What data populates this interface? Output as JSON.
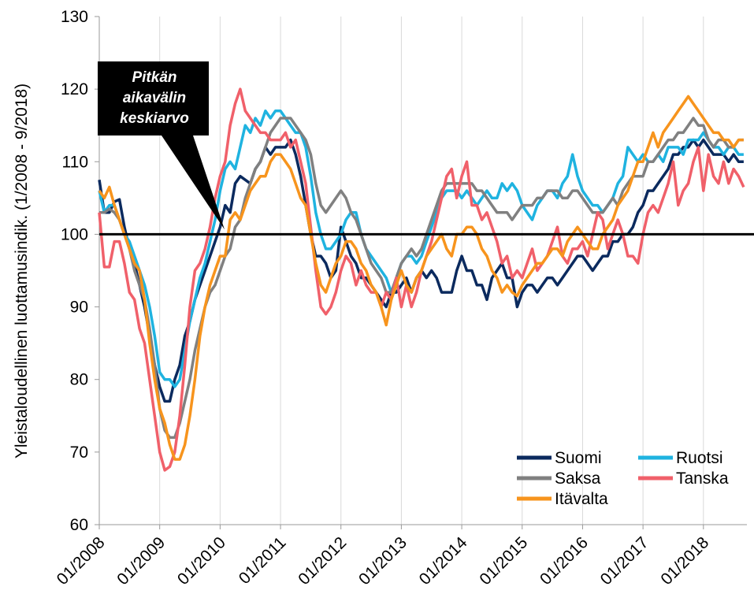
{
  "chart_data": {
    "type": "line",
    "y_label": "Yleistaloudellinen luottamusindik. (1/2008 - 9/2018)",
    "reference_line": 100,
    "annotation": [
      "Pitkän",
      "aikavälin",
      "keskiarvo"
    ],
    "categories": [
      "01/2008",
      null,
      null,
      null,
      null,
      null,
      null,
      null,
      null,
      null,
      null,
      null,
      "01/2009",
      null,
      null,
      null,
      null,
      null,
      null,
      null,
      null,
      null,
      null,
      null,
      "01/2010",
      null,
      null,
      null,
      null,
      null,
      null,
      null,
      null,
      null,
      null,
      null,
      "01/2011",
      null,
      null,
      null,
      null,
      null,
      null,
      null,
      null,
      null,
      null,
      null,
      "01/2012",
      null,
      null,
      null,
      null,
      null,
      null,
      null,
      null,
      null,
      null,
      null,
      "01/2013",
      null,
      null,
      null,
      null,
      null,
      null,
      null,
      null,
      null,
      null,
      null,
      "01/2014",
      null,
      null,
      null,
      null,
      null,
      null,
      null,
      null,
      null,
      null,
      null,
      "01/2015",
      null,
      null,
      null,
      null,
      null,
      null,
      null,
      null,
      null,
      null,
      null,
      "01/2016",
      null,
      null,
      null,
      null,
      null,
      null,
      null,
      null,
      null,
      null,
      null,
      "01/2017",
      null,
      null,
      null,
      null,
      null,
      null,
      null,
      null,
      null,
      null,
      null,
      "01/2018",
      null,
      null,
      null,
      null,
      null,
      null,
      null,
      null
    ],
    "series": [
      {
        "name": "Suomi",
        "color": "#0b2a5e",
        "values": [
          107.5,
          103,
          103,
          104.5,
          104.8,
          101,
          98,
          96,
          93,
          90,
          86,
          82,
          79,
          77,
          77,
          80,
          82,
          86,
          88,
          91,
          93,
          95,
          97,
          99,
          101,
          104,
          103,
          107,
          108,
          107.5,
          107,
          109,
          110,
          112,
          111,
          112,
          112,
          112,
          113,
          111,
          108,
          104,
          100,
          97,
          97,
          96,
          94,
          95,
          101,
          99,
          97,
          96,
          94,
          94,
          93,
          92,
          91,
          90,
          92,
          92,
          93,
          94,
          92,
          94,
          95,
          94,
          95,
          94,
          92,
          92,
          92,
          95,
          97,
          95,
          95,
          93,
          93,
          91,
          94,
          95,
          96,
          94,
          94,
          90,
          92,
          93,
          93,
          92,
          93,
          94,
          94,
          93,
          94,
          95,
          96,
          97,
          97,
          96,
          95,
          96,
          97,
          97,
          99,
          99,
          100,
          100,
          101,
          103,
          104,
          106,
          106,
          107,
          108,
          109,
          111,
          111,
          112,
          112,
          113,
          112,
          113,
          112,
          111,
          111,
          111,
          110,
          111,
          110,
          110
        ]
      },
      {
        "name": "Ruotsi",
        "color": "#1fb3e0",
        "values": [
          106,
          103,
          104,
          104,
          102,
          100,
          99,
          97,
          95,
          93,
          90,
          86,
          81,
          80,
          80,
          79,
          80,
          84,
          88,
          91,
          94,
          96,
          99,
          102,
          106,
          109,
          110,
          109,
          112,
          115,
          114,
          116,
          115,
          117,
          116,
          117,
          117,
          116,
          115,
          114,
          114,
          112,
          108,
          103,
          100,
          98,
          98,
          99,
          100,
          102,
          103,
          103,
          100,
          98,
          97,
          96,
          95,
          94,
          92,
          94,
          96,
          97,
          97,
          96,
          97,
          99,
          101,
          103,
          105,
          106,
          106,
          106,
          105,
          106,
          105,
          104,
          105,
          106,
          105,
          105,
          107,
          106,
          107,
          106,
          104,
          103,
          102,
          104,
          105,
          106,
          106,
          105,
          107,
          108,
          111,
          108,
          106,
          105,
          104,
          104,
          103,
          104,
          105,
          107,
          108,
          112,
          111,
          110,
          111,
          110,
          110,
          111,
          110,
          112,
          112,
          112,
          111,
          113,
          113,
          113,
          114,
          113,
          112,
          112,
          111,
          112,
          112,
          111,
          111
        ]
      },
      {
        "name": "Saksa",
        "color": "#808080",
        "values": [
          103,
          103,
          103.5,
          103,
          102,
          100,
          98,
          95,
          93,
          91,
          87,
          82,
          76,
          73,
          72,
          72,
          74,
          77,
          80,
          84,
          87,
          90,
          92,
          93,
          95,
          97,
          98,
          101,
          102,
          105,
          107,
          109,
          110,
          112,
          114,
          115,
          116,
          116,
          116,
          115,
          114,
          113,
          111,
          107,
          104,
          103,
          104,
          105,
          106,
          105,
          103,
          102,
          100,
          98,
          96,
          95,
          94,
          92,
          92,
          94,
          96,
          97,
          98,
          97,
          98,
          100,
          102,
          104,
          106,
          107,
          107,
          107,
          107,
          107,
          107,
          106,
          106,
          105,
          104,
          103,
          103,
          103,
          102,
          103,
          104,
          104,
          104,
          105,
          105,
          106,
          106,
          106,
          105,
          105,
          106,
          106,
          105,
          104,
          103,
          103,
          103,
          104,
          105,
          104,
          106,
          107,
          108,
          108,
          108,
          110,
          110,
          111,
          112,
          113,
          113,
          114,
          114,
          115,
          116,
          115,
          115,
          113,
          112,
          113,
          113,
          112,
          112,
          113,
          113
        ]
      },
      {
        "name": "Tanska",
        "color": "#f0606a",
        "values": [
          103,
          95.5,
          95.5,
          99,
          99,
          96,
          92,
          91,
          87,
          85,
          80,
          75,
          70,
          67.5,
          68,
          70,
          75,
          82,
          90,
          95,
          96,
          98,
          101,
          105,
          108,
          110,
          115,
          118,
          120,
          117,
          116,
          115,
          114,
          114,
          113,
          113,
          113,
          114,
          112,
          113,
          110,
          107,
          101,
          95,
          90,
          89,
          90,
          92,
          95,
          97,
          96,
          93,
          95,
          93,
          92,
          92,
          90,
          92,
          91,
          94,
          90,
          93,
          90,
          92,
          95,
          97,
          99,
          102,
          105,
          108,
          109,
          105,
          108,
          110,
          104,
          104,
          102,
          103,
          101,
          99,
          96,
          97,
          94,
          95,
          94,
          96,
          98,
          95,
          96,
          97,
          99,
          101,
          97,
          96,
          98,
          98,
          99,
          97,
          100,
          103,
          102,
          98,
          100,
          102,
          100,
          97,
          97,
          96,
          100,
          103,
          104,
          103,
          105,
          107,
          110,
          104,
          106,
          107,
          110,
          112,
          106,
          111,
          108,
          107,
          110,
          107,
          109,
          108,
          106.5
        ]
      },
      {
        "name": "Itävalta",
        "color": "#f7941d",
        "values": [
          106,
          105,
          106.5,
          104,
          102,
          100,
          98,
          96,
          95,
          91,
          85,
          80,
          76,
          74,
          71,
          69,
          69,
          71,
          75,
          80,
          86,
          90,
          93,
          95,
          97,
          97,
          102,
          103,
          102,
          104,
          106,
          107,
          108,
          108,
          110,
          111,
          111,
          110,
          109,
          107,
          105,
          104,
          100,
          96,
          93,
          92,
          94,
          96,
          97,
          99,
          99,
          98,
          96,
          95,
          93,
          92,
          90,
          87.5,
          91,
          93,
          95,
          93,
          92,
          94,
          95,
          97,
          98,
          99,
          100,
          98,
          97,
          100,
          100,
          101,
          101,
          100,
          98,
          97,
          95,
          94,
          92,
          93,
          92,
          91.5,
          93,
          94,
          95,
          96,
          96,
          97,
          98,
          98,
          97,
          99,
          100,
          101,
          100,
          99,
          98,
          98,
          100,
          101,
          102,
          104,
          105,
          106,
          108,
          110,
          110,
          112,
          114,
          112,
          114,
          115,
          116,
          117,
          118,
          119,
          118,
          117,
          116,
          115,
          114,
          114,
          113,
          113,
          112,
          113,
          113
        ]
      }
    ],
    "ylim": [
      60,
      130
    ],
    "yticks": [
      60,
      70,
      80,
      90,
      100,
      110,
      120,
      130
    ],
    "grid": true
  }
}
